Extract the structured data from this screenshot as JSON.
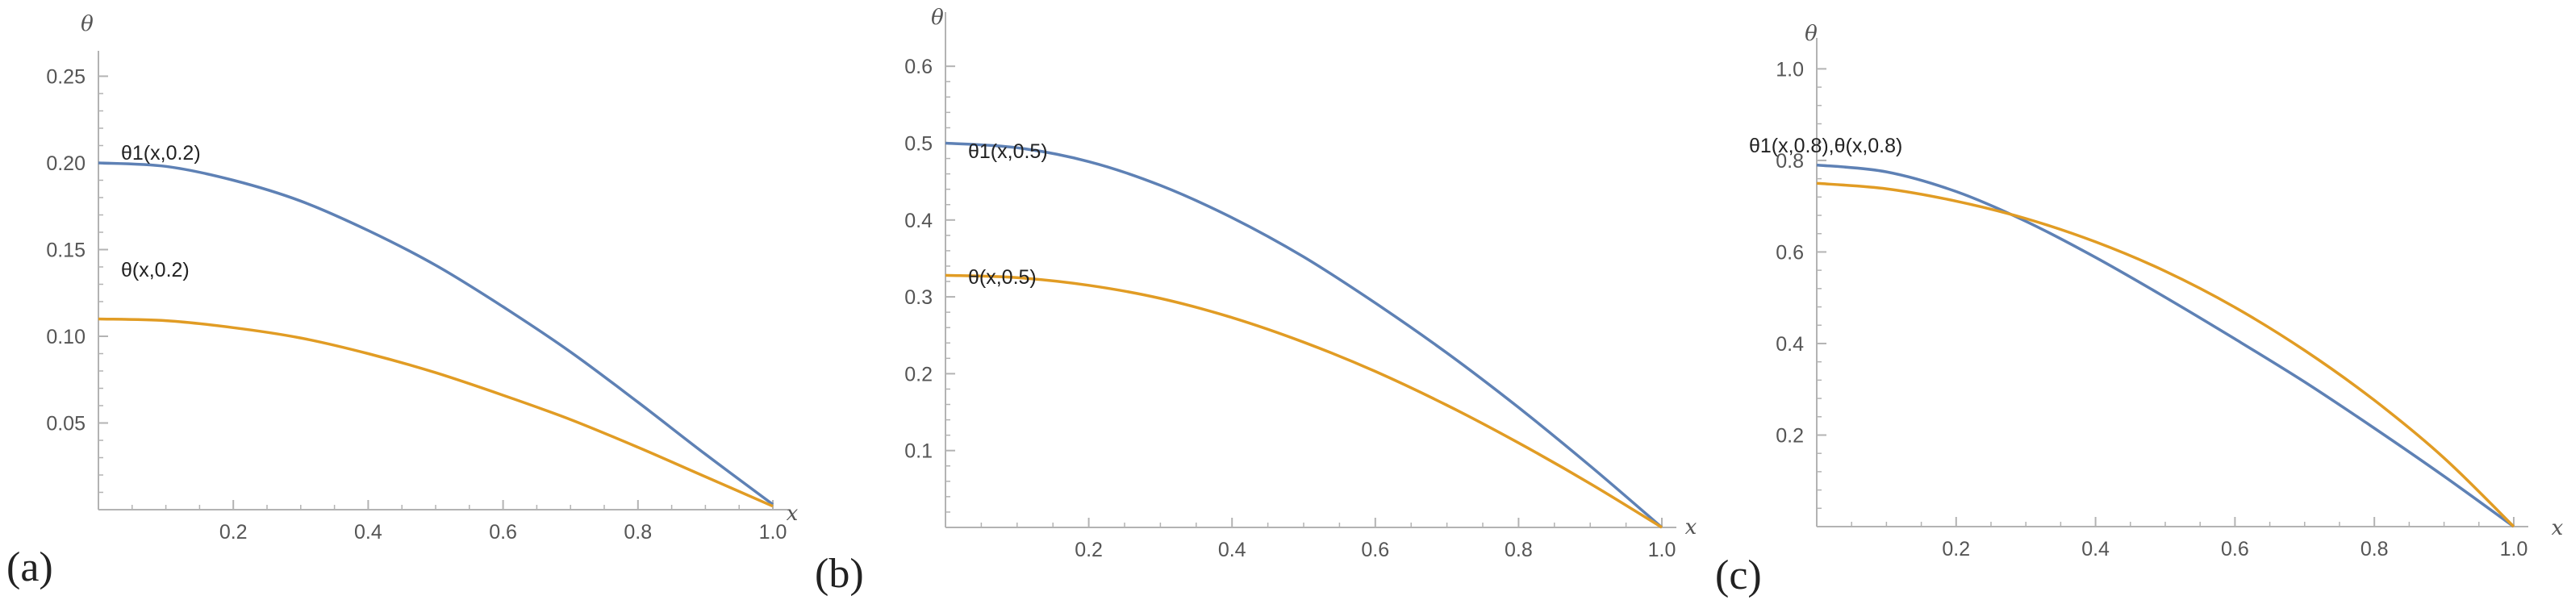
{
  "colors": {
    "series1": "#5e81b5",
    "series2": "#e19c24",
    "axis": "#b3b3b3",
    "tick": "#555555"
  },
  "chart_data": [
    {
      "type": "line",
      "panel_label": "(a)",
      "xlabel": "x",
      "ylabel": "θ",
      "xlim": [
        0,
        1.0
      ],
      "ylim": [
        0,
        0.26
      ],
      "x_ticks": [
        "0.2",
        "0.4",
        "0.6",
        "0.8",
        "1.0"
      ],
      "y_ticks": [
        "0.05",
        "0.10",
        "0.15",
        "0.20",
        "0.25"
      ],
      "series": [
        {
          "name": "θ1(x,0.2)",
          "x": [
            0,
            0.1,
            0.2,
            0.3,
            0.4,
            0.5,
            0.6,
            0.7,
            0.8,
            0.9,
            1.0
          ],
          "y": [
            0.2,
            0.198,
            0.19,
            0.178,
            0.161,
            0.141,
            0.117,
            0.091,
            0.062,
            0.032,
            0.003
          ]
        },
        {
          "name": "θ(x,0.2)",
          "x": [
            0,
            0.1,
            0.2,
            0.3,
            0.4,
            0.5,
            0.6,
            0.7,
            0.8,
            0.9,
            1.0
          ],
          "y": [
            0.11,
            0.109,
            0.105,
            0.099,
            0.09,
            0.079,
            0.066,
            0.052,
            0.036,
            0.019,
            0.002
          ]
        }
      ]
    },
    {
      "type": "line",
      "panel_label": "(b)",
      "xlabel": "x",
      "ylabel": "θ",
      "xlim": [
        0,
        1.0
      ],
      "ylim": [
        0,
        0.66
      ],
      "x_ticks": [
        "0.2",
        "0.4",
        "0.6",
        "0.8",
        "1.0"
      ],
      "y_ticks": [
        "0.1",
        "0.2",
        "0.3",
        "0.4",
        "0.5",
        "0.6"
      ],
      "series": [
        {
          "name": "θ1(x,0.5)",
          "x": [
            0,
            0.1,
            0.2,
            0.3,
            0.4,
            0.5,
            0.6,
            0.7,
            0.8,
            0.9,
            1.0
          ],
          "y": [
            0.5,
            0.494,
            0.476,
            0.445,
            0.403,
            0.352,
            0.292,
            0.227,
            0.156,
            0.08,
            0.0
          ]
        },
        {
          "name": "θ(x,0.5)",
          "x": [
            0,
            0.1,
            0.2,
            0.3,
            0.4,
            0.5,
            0.6,
            0.7,
            0.8,
            0.9,
            1.0
          ],
          "y": [
            0.328,
            0.325,
            0.315,
            0.298,
            0.273,
            0.241,
            0.203,
            0.159,
            0.11,
            0.057,
            0.0
          ]
        }
      ]
    },
    {
      "type": "line",
      "panel_label": "(c)",
      "xlabel": "x",
      "ylabel": "θ",
      "xlim": [
        0,
        1.0
      ],
      "ylim": [
        0,
        1.05
      ],
      "x_ticks": [
        "0.2",
        "0.4",
        "0.6",
        "0.8",
        "1.0"
      ],
      "y_ticks": [
        "0.2",
        "0.4",
        "0.6",
        "0.8",
        "1.0"
      ],
      "label_text": "θ1(x,0.8),θ(x,0.8)",
      "series": [
        {
          "name": "θ1(x,0.8)",
          "x": [
            0,
            0.1,
            0.2,
            0.3,
            0.4,
            0.5,
            0.6,
            0.7,
            0.8,
            0.9,
            1.0
          ],
          "y": [
            0.79,
            0.775,
            0.732,
            0.667,
            0.588,
            0.501,
            0.41,
            0.316,
            0.215,
            0.11,
            0.0
          ]
        },
        {
          "name": "θ(x,0.8)",
          "x": [
            0,
            0.1,
            0.2,
            0.3,
            0.4,
            0.5,
            0.6,
            0.7,
            0.8,
            0.9,
            1.0
          ],
          "y": [
            0.75,
            0.738,
            0.711,
            0.673,
            0.622,
            0.558,
            0.479,
            0.385,
            0.276,
            0.15,
            0.0
          ]
        }
      ]
    }
  ]
}
